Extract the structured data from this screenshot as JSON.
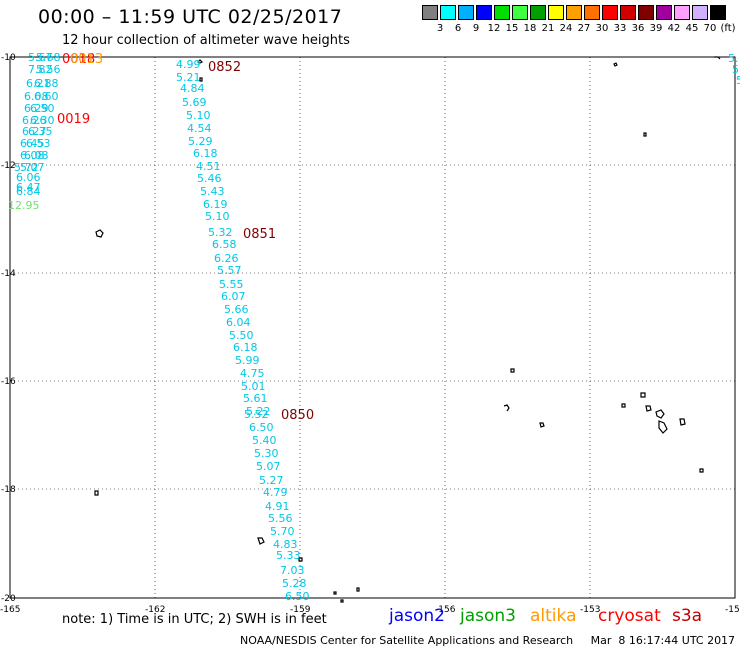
{
  "title": "00:00 – 11:59 UTC 02/25/2017",
  "subtitle": "12 hour collection of altimeter wave heights",
  "legend": {
    "unit": "(ft)",
    "colors": [
      "#808080",
      "#00ffff",
      "#00b0ff",
      "#0000ff",
      "#00e000",
      "#40ff40",
      "#00a000",
      "#ffff00",
      "#ffa000",
      "#ff7000",
      "#ff0000",
      "#d00000",
      "#800000",
      "#a000a0",
      "#ffa0ff",
      "#d0b0ff",
      "#000000"
    ],
    "labels": [
      "3",
      "6",
      "9",
      "12",
      "15",
      "18",
      "21",
      "24",
      "27",
      "30",
      "33",
      "36",
      "39",
      "42",
      "45",
      "70"
    ]
  },
  "map": {
    "x_ticks": [
      "-165",
      "-162",
      "-159",
      "-156",
      "-153",
      "-15"
    ],
    "y_ticks": [
      "-10",
      "-12",
      "-14",
      "-16",
      "-18",
      "-20"
    ],
    "colors": {
      "swh": "#00c8e8",
      "swh_green": "#70e070",
      "time_dark": "#800000",
      "time_red": "#ff0000",
      "time_orange": "#ff9900"
    }
  },
  "track_main": [
    "4.99",
    "5.21",
    "4.84",
    "5.69",
    "5.10",
    "4.54",
    "5.29",
    "6.18",
    "4.51",
    "5.46",
    "5.43",
    "6.19",
    "5.10",
    "5.32",
    "6.58",
    "6.26",
    "5.57",
    "5.55",
    "6.07",
    "5.66",
    "6.04",
    "5.50",
    "6.18",
    "5.99",
    "4.75",
    "5.01",
    "5.61",
    "5.22",
    "5.52",
    "6.50",
    "5.40",
    "5.30",
    "5.07",
    "5.27",
    "4.79",
    "4.91",
    "5.56",
    "5.70",
    "4.83",
    "5.33",
    "7.03",
    "5.28",
    "6.50"
  ],
  "track_left": [
    "5.67",
    "7.82",
    "6.21",
    "6.08",
    "6.29",
    "6.26",
    "6.27",
    "6.45",
    "6.08",
    "5.72",
    "6.06",
    "6.47",
    "6.84",
    "12.95"
  ],
  "track_left_overlap": [
    "5.68",
    "5.56",
    "6.88",
    "6.60",
    "6.50",
    "6.30",
    "6.35",
    "6.53",
    "6.08",
    "5.07"
  ],
  "right_edge": [
    "5.",
    "5.",
    "5"
  ],
  "times": [
    "0852",
    "0851",
    "0850",
    "0019",
    "0018",
    "0013"
  ],
  "note": "note:  1) Time is in UTC;  2) SWH is in feet",
  "satellites": [
    {
      "name": "jason2",
      "color": "#0000ff"
    },
    {
      "name": "jason3",
      "color": "#00a000"
    },
    {
      "name": "altika",
      "color": "#ff9900"
    },
    {
      "name": "cryosat",
      "color": "#ff0000"
    },
    {
      "name": "s3a",
      "color": "#c00000"
    }
  ],
  "footer": "NOAA/NESDIS Center for Satellite Applications and Research     Mar  8 16:17:44 UTC 2017"
}
